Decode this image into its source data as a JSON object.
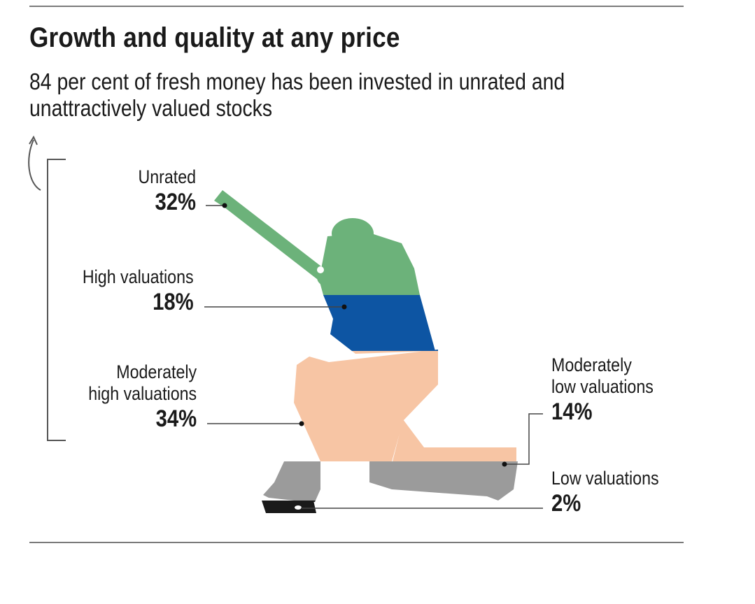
{
  "chart_data": {
    "type": "pie",
    "title": "Growth and quality at any price",
    "subtitle": "84 per cent of fresh money has been invested in unrated and unattractively valued stocks",
    "categories": [
      "Unrated",
      "High valuations",
      "Moderately high valuations",
      "Moderately low valuations",
      "Low valuations"
    ],
    "values": [
      32,
      18,
      34,
      14,
      2
    ],
    "value_labels": [
      "32%",
      "18%",
      "34%",
      "14%",
      "2%"
    ],
    "category_lines": [
      [
        "Unrated"
      ],
      [
        "High valuations"
      ],
      [
        "Moderately",
        "high valuations"
      ],
      [
        "Moderately",
        "low valuations"
      ],
      [
        "Low valuations"
      ]
    ],
    "colors": [
      "#6cb27a",
      "#0d55a3",
      "#f7c5a4",
      "#9b9b9b",
      "#1a1a1a"
    ],
    "grouped_total_percent": 84,
    "grouped_categories": [
      "Unrated",
      "High valuations",
      "Moderately high valuations"
    ]
  }
}
